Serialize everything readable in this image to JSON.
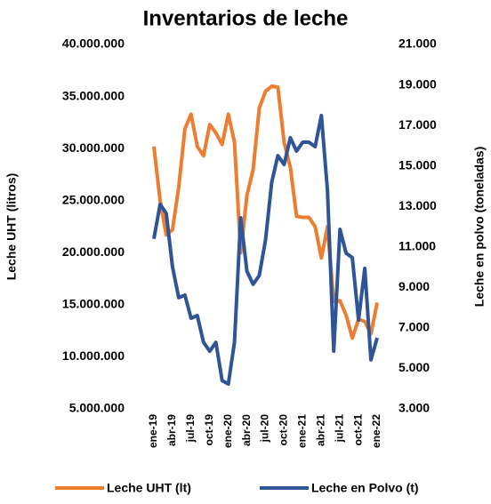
{
  "chart_data": {
    "type": "line",
    "title": "Inventarios de leche",
    "y_label": "Leche UHT (litros)",
    "y2_label": "Leche en polvo (toneladas)",
    "categories": [
      "ene-19",
      null,
      null,
      "abr-19",
      null,
      null,
      "jul-19",
      null,
      null,
      "oct-19",
      null,
      null,
      "ene-20",
      null,
      null,
      "abr-20",
      null,
      null,
      "jul-20",
      null,
      null,
      "oct-20",
      null,
      null,
      "ene-21",
      null,
      null,
      "abr-21",
      null,
      null,
      "jul-21",
      null,
      null,
      "oct-21",
      null,
      null,
      "ene-22"
    ],
    "series": [
      {
        "name": "Leche UHT (lt)",
        "color": "#ED7D31",
        "axis": "y",
        "values": [
          30200000,
          25000000,
          21700000,
          22200000,
          26300000,
          31900000,
          33300000,
          30200000,
          29300000,
          32300000,
          31500000,
          30400000,
          33300000,
          30600000,
          20000000,
          25500000,
          28000000,
          33900000,
          35500000,
          36000000,
          35900000,
          30600000,
          28200000,
          23500000,
          23400000,
          23400000,
          22500000,
          19500000,
          22500000,
          15300000,
          15400000,
          14000000,
          11800000,
          13600000,
          13400000,
          12200000,
          15200000
        ]
      },
      {
        "name": "Leche en Polvo (t)",
        "color": "#2F5597",
        "axis": "y2",
        "values": [
          11400,
          13100,
          12660,
          10025,
          8490,
          8620,
          7480,
          7610,
          6290,
          5850,
          6290,
          4400,
          4230,
          6290,
          12440,
          9800,
          9150,
          9590,
          11340,
          14200,
          15510,
          15070,
          16390,
          15730,
          16170,
          16170,
          15950,
          17490,
          13760,
          5850,
          11870,
          10690,
          10470,
          7390,
          9940,
          5420,
          6510
        ]
      }
    ],
    "ylim": [
      5000000,
      40000000
    ],
    "yticks": [
      {
        "value": 5000000,
        "label": "5.000.000"
      },
      {
        "value": 10000000,
        "label": "10.000.000"
      },
      {
        "value": 15000000,
        "label": "15.000.000"
      },
      {
        "value": 20000000,
        "label": "20.000.000"
      },
      {
        "value": 25000000,
        "label": "25.000.000"
      },
      {
        "value": 30000000,
        "label": "30.000.000"
      },
      {
        "value": 35000000,
        "label": "35.000.000"
      },
      {
        "value": 40000000,
        "label": "40.000.000"
      }
    ],
    "y2lim": [
      3000,
      21000
    ],
    "y2ticks": [
      {
        "value": 3000,
        "label": "3.000"
      },
      {
        "value": 5000,
        "label": "5.000"
      },
      {
        "value": 7000,
        "label": "7.000"
      },
      {
        "value": 9000,
        "label": "9.000"
      },
      {
        "value": 11000,
        "label": "11.000"
      },
      {
        "value": 13000,
        "label": "13.000"
      },
      {
        "value": 15000,
        "label": "15.000"
      },
      {
        "value": 17000,
        "label": "17.000"
      },
      {
        "value": 19000,
        "label": "19.000"
      },
      {
        "value": 21000,
        "label": "21.000"
      }
    ],
    "legend": "bottom"
  }
}
